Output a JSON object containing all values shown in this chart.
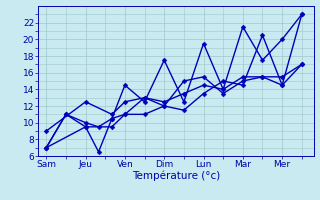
{
  "x_labels": [
    "Sam",
    "Jeu",
    "Ven",
    "Dim",
    "Lun",
    "Mar",
    "Mer"
  ],
  "series": [
    {
      "x": [
        0,
        0.5,
        1,
        1.33,
        1.67,
        2,
        2.5,
        3,
        3.5,
        4,
        4.5,
        5,
        5.5,
        6,
        6.5
      ],
      "y": [
        7,
        11,
        9.5,
        6.5,
        10.5,
        14.5,
        12.5,
        17.5,
        12.5,
        19.5,
        14,
        21.5,
        17.5,
        20,
        23
      ]
    },
    {
      "x": [
        0,
        0.5,
        1,
        1.33,
        1.67,
        2,
        2.5,
        3,
        3.5,
        4,
        4.5,
        5,
        5.5,
        6,
        6.5
      ],
      "y": [
        7,
        11,
        10,
        9.5,
        10.5,
        11,
        13,
        12,
        15,
        15.5,
        13.5,
        15,
        15.5,
        14.5,
        17
      ]
    },
    {
      "x": [
        0,
        1,
        1.67,
        2,
        2.5,
        3,
        3.5,
        4,
        4.5,
        5,
        5.5,
        6,
        6.5
      ],
      "y": [
        9,
        12.5,
        11,
        12.5,
        13,
        12.5,
        13.5,
        14.5,
        14,
        15.5,
        15.5,
        15.5,
        17
      ]
    },
    {
      "x": [
        0,
        1,
        1.67,
        2,
        2.5,
        3,
        3.5,
        4,
        4.5,
        5,
        5.5,
        6,
        6.5
      ],
      "y": [
        7,
        9.5,
        9.5,
        11,
        11,
        12,
        11.5,
        13.5,
        15,
        14.5,
        20.5,
        14.5,
        23
      ]
    }
  ],
  "ylabel": "Température (°c)",
  "ylim": [
    6,
    24
  ],
  "yticks": [
    6,
    8,
    10,
    12,
    14,
    16,
    18,
    20,
    22
  ],
  "xlim": [
    -0.2,
    6.8
  ],
  "xtick_pos": [
    0,
    1,
    2,
    3,
    4,
    5,
    6
  ],
  "bg_color": "#c8eaf0",
  "grid_color": "#a0c8cc",
  "line_color": "#0000bb",
  "axis_color": "#0000aa",
  "figsize": [
    3.2,
    2.0
  ],
  "dpi": 100
}
